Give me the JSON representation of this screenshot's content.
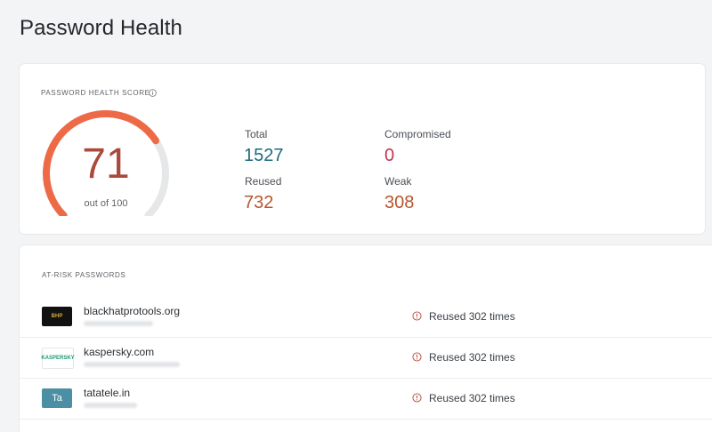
{
  "page": {
    "title": "Password Health"
  },
  "score_card": {
    "label": "PASSWORD HEALTH SCORE",
    "score": "71",
    "score_fraction": 0.71,
    "score_sub": "out of 100",
    "stats": {
      "total": {
        "label": "Total",
        "value": "1527",
        "color": "#1e6b7b"
      },
      "compromised": {
        "label": "Compromised",
        "value": "0",
        "color": "#c8334f"
      },
      "reused": {
        "label": "Reused",
        "value": "732",
        "color": "#b8552f"
      },
      "weak": {
        "label": "Weak",
        "value": "308",
        "color": "#b8552f"
      }
    },
    "gauge_colors": {
      "fill": "#ee6a47",
      "track": "#e6e7e8"
    }
  },
  "risk_card": {
    "label": "AT-RISK PASSWORDS",
    "rows": [
      {
        "site": "blackhatprotools.org",
        "status": "Reused 302 times",
        "logo_icon": "blackhat-logo-icon",
        "logo_bg": "#111111",
        "logo_text": "BHP",
        "logo_color": "#d6a93a"
      },
      {
        "site": "kaspersky.com",
        "status": "Reused 302 times",
        "logo_icon": "kaspersky-logo-icon",
        "logo_bg": "#ffffff",
        "logo_text": "KASPERSKY",
        "logo_color": "#1a9c6b"
      },
      {
        "site": "tatatele.in",
        "status": "Reused 302 times",
        "logo_icon": "tata-logo-icon",
        "logo_bg": "#4a8fa3",
        "logo_text": "Ta",
        "logo_color": "#ffffff"
      }
    ]
  }
}
